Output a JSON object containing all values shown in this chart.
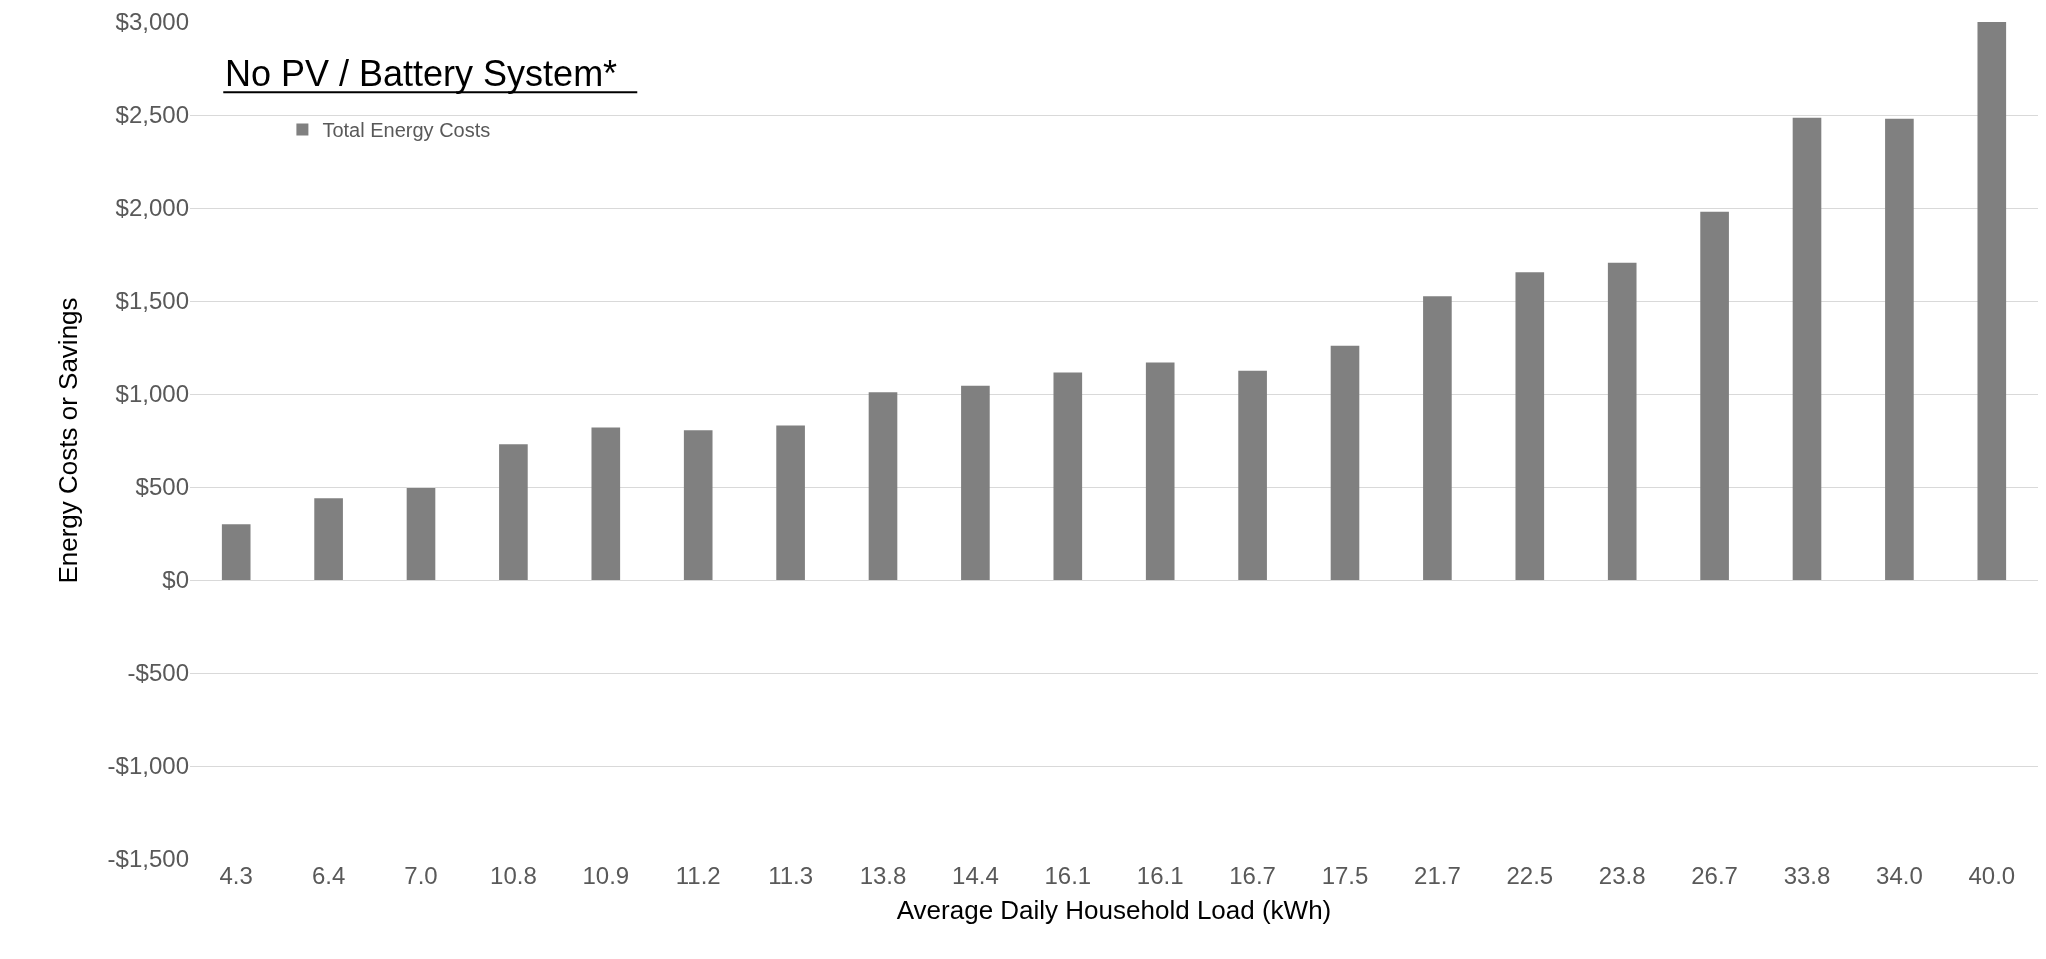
{
  "chart_data": {
    "type": "bar",
    "title": "No PV / Battery System*",
    "xlabel": "Average Daily Household Load (kWh)",
    "ylabel": "Energy Costs or Savings",
    "categories": [
      "4.3",
      "6.4",
      "7.0",
      "10.8",
      "10.9",
      "11.2",
      "11.3",
      "13.8",
      "14.4",
      "16.1",
      "16.1",
      "16.7",
      "17.5",
      "21.7",
      "22.5",
      "23.8",
      "26.7",
      "33.8",
      "34.0",
      "40.0"
    ],
    "series": [
      {
        "name": "Total Energy Costs",
        "color": "#808080",
        "values": [
          300,
          440,
          495,
          730,
          820,
          805,
          830,
          1010,
          1045,
          1115,
          1170,
          1125,
          1260,
          1525,
          1655,
          1705,
          1980,
          2485,
          2480,
          3000
        ]
      }
    ],
    "ylim": [
      -1500,
      3000
    ],
    "yticks": [
      {
        "value": -1500,
        "label": "-$1,500"
      },
      {
        "value": -1000,
        "label": "-$1,000"
      },
      {
        "value": -500,
        "label": "-$500"
      },
      {
        "value": 0,
        "label": "$0"
      },
      {
        "value": 500,
        "label": "$500"
      },
      {
        "value": 1000,
        "label": "$1,000"
      },
      {
        "value": 1500,
        "label": "$1,500"
      },
      {
        "value": 2000,
        "label": "$2,000"
      },
      {
        "value": 2500,
        "label": "$2,500"
      },
      {
        "value": 3000,
        "label": "$3,000"
      }
    ],
    "grid": "y",
    "legend": "top left"
  }
}
